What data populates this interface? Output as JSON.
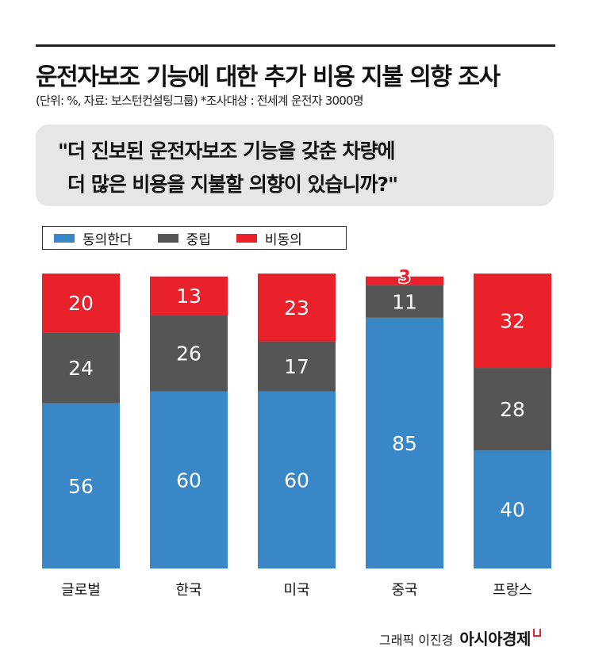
{
  "title": "운전자보조 기능에 대한 추가 비용 지불 의향 조사",
  "subtitle": "(단위: %, 자료: 보스턴컨설팅그룹)  *조사대상 : 전세계 운전자 3000명",
  "question": {
    "line1": "\"더 진보된 운전자보조 기능을 갖춘 차량에",
    "line2": "더 많은 비용을 지불할 의향이 있습니까?\""
  },
  "footer": {
    "credit": "그래픽 이진경",
    "brand": "아시아경제"
  },
  "chart_data": {
    "type": "bar",
    "stacked": true,
    "categories": [
      "글로벌",
      "한국",
      "미국",
      "중국",
      "프랑스"
    ],
    "series": [
      {
        "name": "동의한다",
        "color": "#3a87c8",
        "values": [
          56,
          60,
          60,
          85,
          40
        ]
      },
      {
        "name": "중립",
        "color": "#555555",
        "values": [
          24,
          26,
          17,
          11,
          28
        ]
      },
      {
        "name": "비동의",
        "color": "#e8212a",
        "values": [
          20,
          13,
          23,
          3,
          32
        ]
      }
    ],
    "ylim": [
      0,
      100
    ],
    "legend": "top-left",
    "grid": false
  }
}
